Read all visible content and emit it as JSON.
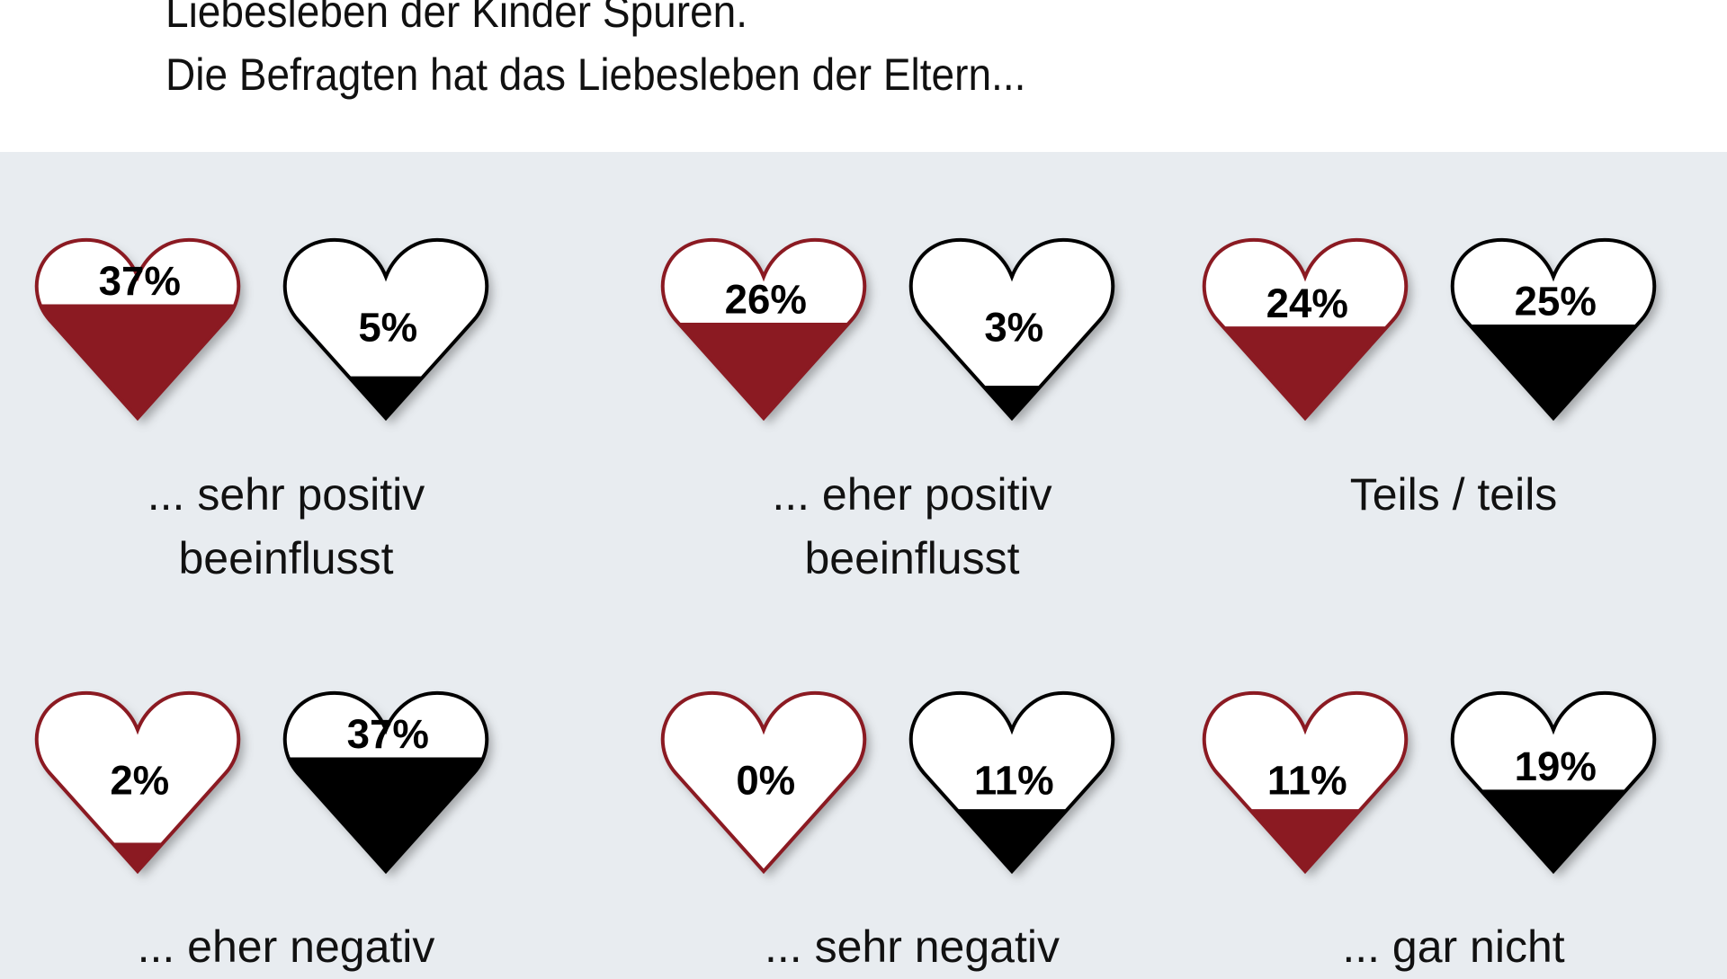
{
  "header": {
    "line1": "Liebesleben der Kinder Spuren.",
    "line2": "Die Befragten hat das Liebesleben der Eltern..."
  },
  "colors": {
    "red": "#8b1a22",
    "black": "#000000",
    "background": "#e8ecf0"
  },
  "chart_data": {
    "type": "pictogram",
    "title": "Die Befragten hat das Liebesleben der Eltern...",
    "series": [
      {
        "name": "red-heart",
        "color": "#8b1a22"
      },
      {
        "name": "black-heart",
        "color": "#000000"
      }
    ],
    "groups": [
      {
        "label_lines": [
          "...  sehr positiv",
          "beeinflusst"
        ],
        "values": [
          37,
          5
        ],
        "texts": [
          "37%",
          "5%"
        ]
      },
      {
        "label_lines": [
          "... eher positiv",
          "beeinflusst"
        ],
        "values": [
          26,
          3
        ],
        "texts": [
          "26%",
          "3%"
        ]
      },
      {
        "label_lines": [
          "Teils / teils"
        ],
        "values": [
          24,
          25
        ],
        "texts": [
          "24%",
          "25%"
        ]
      },
      {
        "label_lines": [
          "...  eher negativ"
        ],
        "values": [
          2,
          37
        ],
        "texts": [
          "2%",
          "37%"
        ]
      },
      {
        "label_lines": [
          "...  sehr negativ"
        ],
        "values": [
          0,
          11
        ],
        "texts": [
          "0%",
          "11%"
        ]
      },
      {
        "label_lines": [
          "...  gar nicht"
        ],
        "values": [
          11,
          19
        ],
        "texts": [
          "11%",
          "19%"
        ]
      }
    ]
  }
}
